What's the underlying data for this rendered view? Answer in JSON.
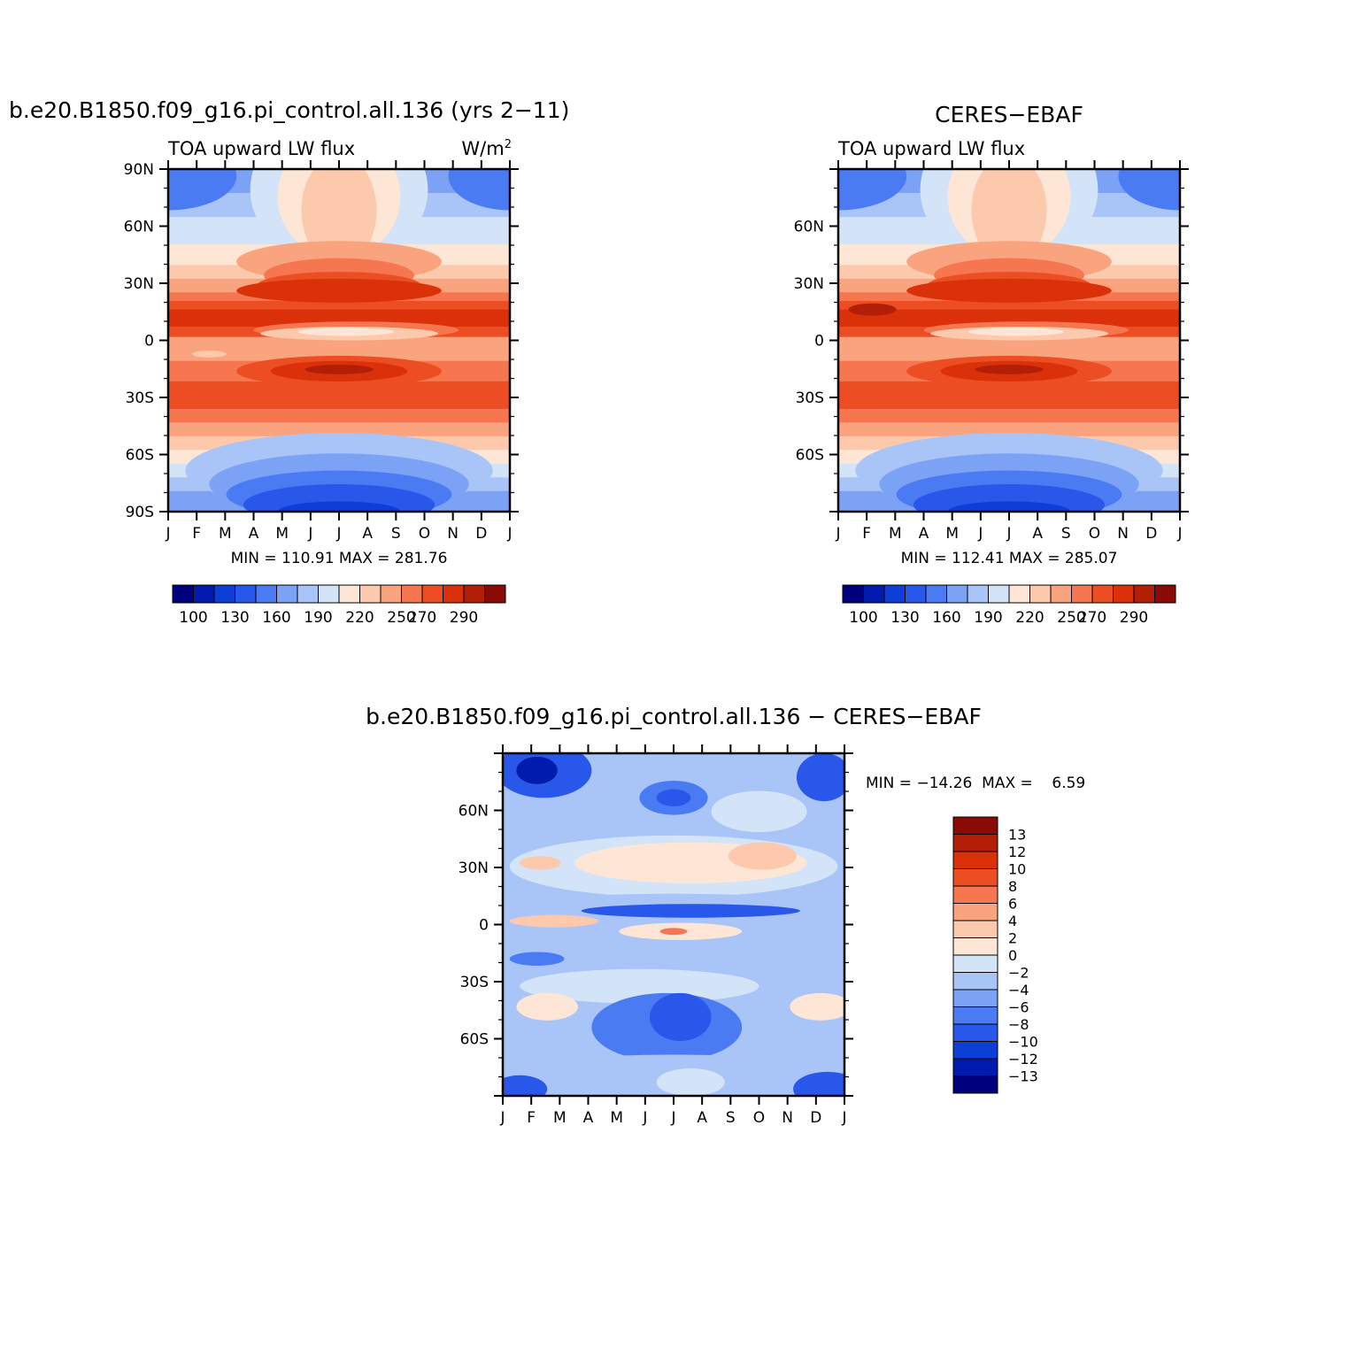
{
  "palette": [
    "#00007f",
    "#001bad",
    "#0d3ed6",
    "#2857ea",
    "#4b7bf2",
    "#7ca2f6",
    "#a9c4f7",
    "#d4e4f8",
    "#fde6d6",
    "#fcc9ad",
    "#f9a47f",
    "#f5764f",
    "#ec4d22",
    "#db310b",
    "#b31f06",
    "#8a0a05"
  ],
  "plots": {
    "model": {
      "title": "b.e20.B1850.f09_g16.pi_control.all.136 (yrs 2−11)",
      "left_label": "TOA upward LW flux",
      "right_label": "W/m",
      "right_label_sup": "2",
      "stats": "MIN = 110.91  MAX = 281.76",
      "colorbar_labels": [
        "100",
        "130",
        "160",
        "190",
        "220",
        "250",
        "270",
        "290"
      ]
    },
    "obs": {
      "title": "CERES−EBAF",
      "left_label": "TOA upward LW flux",
      "stats": "MIN = 112.41  MAX = 285.07",
      "colorbar_labels": [
        "100",
        "130",
        "160",
        "190",
        "220",
        "250",
        "270",
        "290"
      ]
    },
    "diff": {
      "title": "b.e20.B1850.f09_g16.pi_control.all.136 − CERES−EBAF",
      "stats": "MIN = −14.26  MAX =    6.59",
      "colorbar_labels": [
        "13",
        "12",
        "10",
        "8",
        "6",
        "4",
        "2",
        "0",
        "−2",
        "−4",
        "−6",
        "−8",
        "−10",
        "−12",
        "−13"
      ]
    }
  },
  "axes": {
    "months": [
      "J",
      "F",
      "M",
      "A",
      "M",
      "J",
      "J",
      "A",
      "S",
      "O",
      "N",
      "D",
      "J"
    ],
    "lat_labels_full": [
      "90N",
      "60N",
      "30N",
      "0",
      "30S",
      "60S",
      "90S"
    ],
    "lat_labels_short": [
      "60N",
      "30N",
      "0",
      "30S",
      "60S"
    ]
  },
  "chart_data": [
    {
      "type": "heatmap",
      "title": "b.e20.B1850.f09_g16.pi_control.all.136 (yrs 2−11)",
      "variable": "TOA upward LW flux",
      "units": "W/m2",
      "x": [
        "J",
        "F",
        "M",
        "A",
        "M",
        "J",
        "J",
        "A",
        "S",
        "O",
        "N",
        "D",
        "J"
      ],
      "y_ticks": [
        90,
        60,
        30,
        0,
        -30,
        -60,
        -90
      ],
      "levels": [
        100,
        110,
        120,
        130,
        140,
        150,
        160,
        170,
        180,
        190,
        200,
        210,
        220,
        230,
        240,
        250,
        260,
        270,
        280,
        290
      ],
      "min": 110.91,
      "max": 281.76,
      "colormap": "blue-white-red"
    },
    {
      "type": "heatmap",
      "title": "CERES−EBAF",
      "variable": "TOA upward LW flux",
      "x": [
        "J",
        "F",
        "M",
        "A",
        "M",
        "J",
        "J",
        "A",
        "S",
        "O",
        "N",
        "D",
        "J"
      ],
      "y_ticks": [
        60,
        30,
        0,
        -30,
        -60
      ],
      "min": 112.41,
      "max": 285.07,
      "colormap": "blue-white-red"
    },
    {
      "type": "heatmap",
      "title": "b.e20.B1850.f09_g16.pi_control.all.136 − CERES−EBAF",
      "x": [
        "J",
        "F",
        "M",
        "A",
        "M",
        "J",
        "J",
        "A",
        "S",
        "O",
        "N",
        "D",
        "J"
      ],
      "y_ticks": [
        60,
        30,
        0,
        -30,
        -60
      ],
      "levels": [
        -13,
        -12,
        -10,
        -8,
        -6,
        -4,
        -2,
        0,
        2,
        4,
        6,
        8,
        10,
        12,
        13
      ],
      "min": -14.26,
      "max": 6.59,
      "colormap": "blue-white-red"
    }
  ]
}
